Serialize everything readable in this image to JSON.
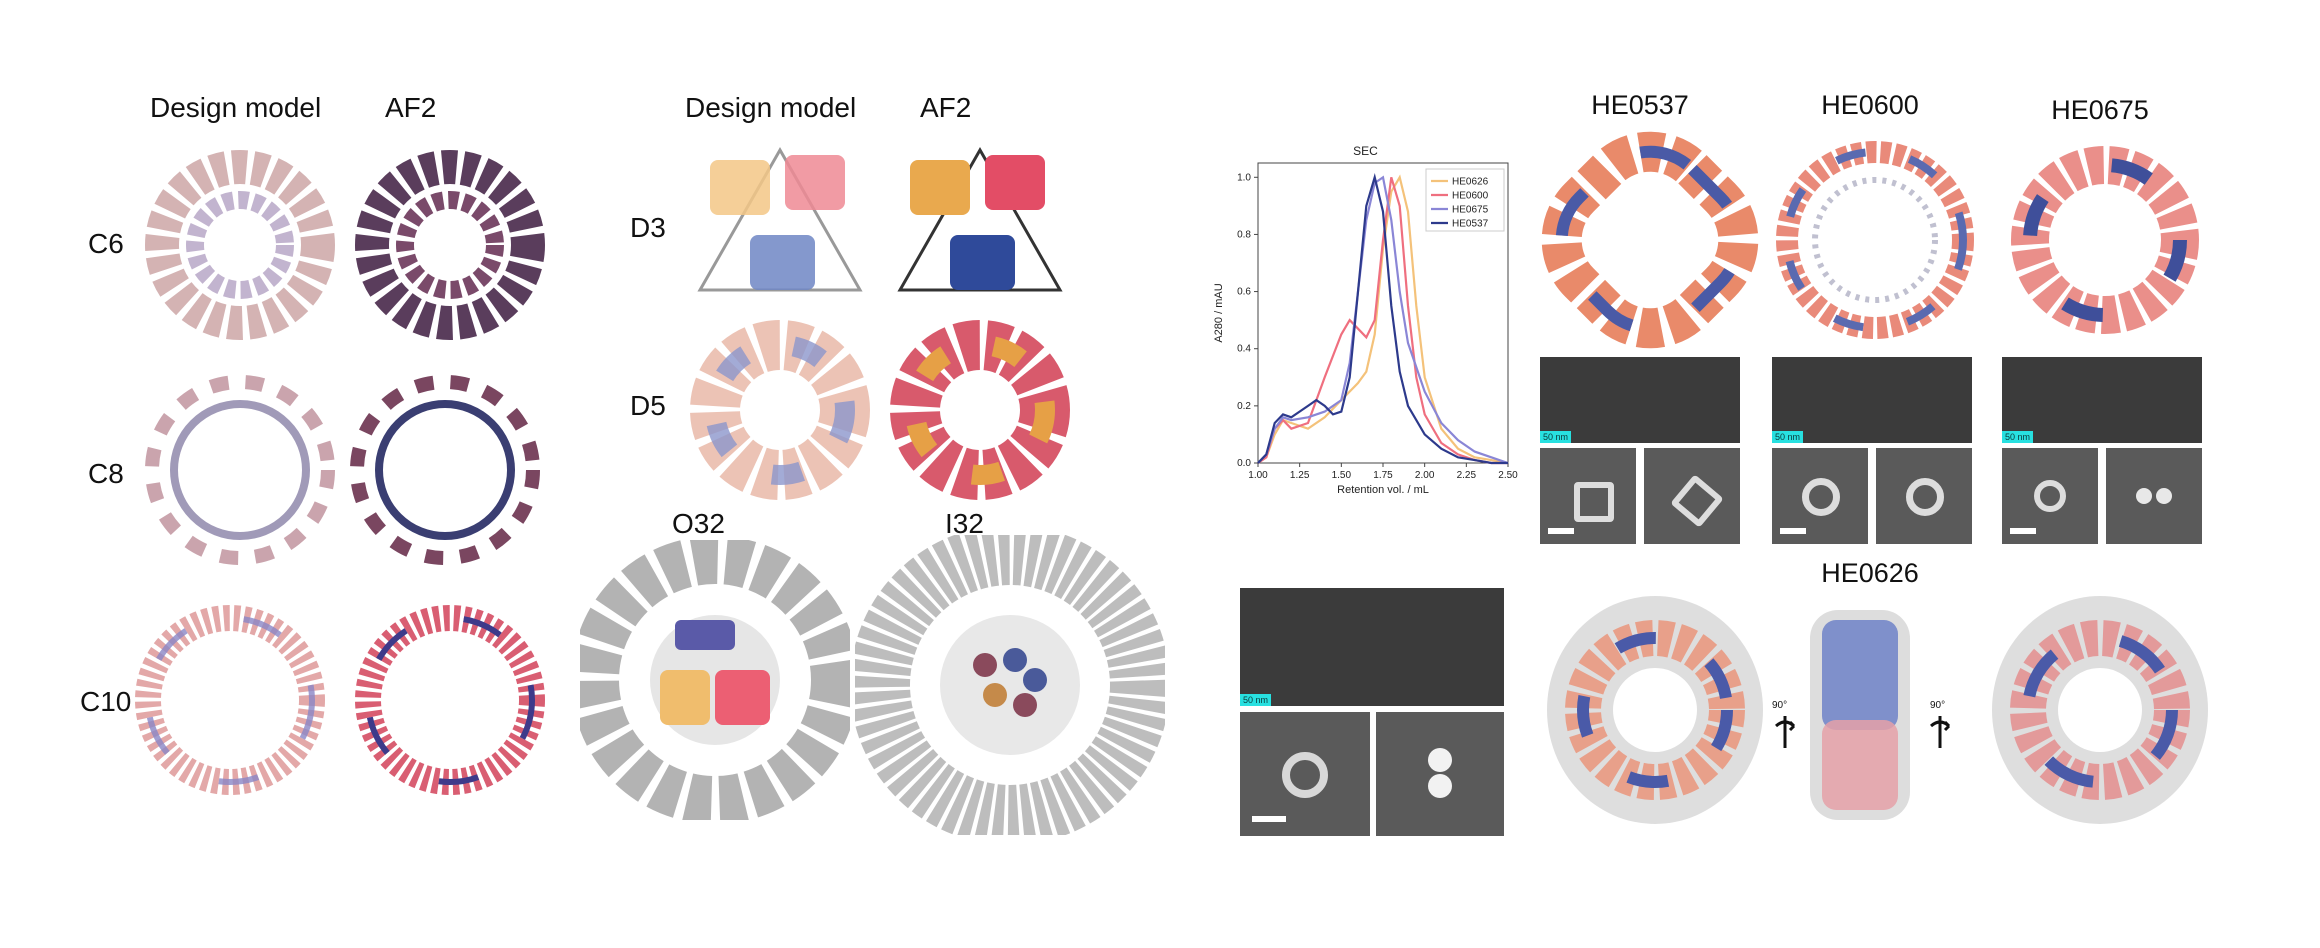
{
  "panel_a": {
    "col_design": "Design model",
    "col_af2": "AF2",
    "rows": [
      {
        "label": "C6"
      },
      {
        "label": "C8"
      },
      {
        "label": "C10"
      }
    ]
  },
  "panel_b": {
    "col_design": "Design model",
    "col_af2": "AF2",
    "rows": [
      {
        "label": "D3"
      },
      {
        "label": "D5"
      }
    ],
    "cages": [
      {
        "label": "O32"
      },
      {
        "label": "I32"
      }
    ]
  },
  "sec_chart": {
    "chart_data": {
      "type": "line",
      "title": "SEC",
      "xlabel": "Retention vol. / mL",
      "ylabel": "A280 / mAU",
      "xlim": [
        1.0,
        2.5
      ],
      "ylim": [
        0.0,
        1.05
      ],
      "xticks": [
        "1.00",
        "1.25",
        "1.50",
        "1.75",
        "2.00",
        "2.25",
        "2.50"
      ],
      "yticks": [
        "0.0",
        "0.2",
        "0.4",
        "0.6",
        "0.8",
        "1.0"
      ],
      "legend_position": "top-right",
      "series": [
        {
          "name": "HE0626",
          "color": "#f4c27a",
          "x": [
            1.0,
            1.05,
            1.1,
            1.15,
            1.2,
            1.3,
            1.4,
            1.5,
            1.6,
            1.65,
            1.7,
            1.75,
            1.8,
            1.85,
            1.9,
            1.95,
            2.0,
            2.1,
            2.2,
            2.3,
            2.4,
            2.5
          ],
          "y": [
            0.0,
            0.02,
            0.1,
            0.15,
            0.14,
            0.12,
            0.16,
            0.22,
            0.28,
            0.32,
            0.45,
            0.75,
            0.95,
            1.0,
            0.88,
            0.55,
            0.3,
            0.12,
            0.05,
            0.02,
            0.01,
            0.0
          ]
        },
        {
          "name": "HE0600",
          "color": "#ef6f7f",
          "x": [
            1.0,
            1.05,
            1.1,
            1.15,
            1.2,
            1.3,
            1.4,
            1.5,
            1.55,
            1.6,
            1.65,
            1.7,
            1.75,
            1.8,
            1.85,
            1.9,
            1.95,
            2.0,
            2.1,
            2.2,
            2.3,
            2.4,
            2.5
          ],
          "y": [
            0.0,
            0.02,
            0.12,
            0.15,
            0.12,
            0.14,
            0.3,
            0.45,
            0.5,
            0.47,
            0.44,
            0.5,
            0.78,
            1.0,
            0.9,
            0.55,
            0.3,
            0.17,
            0.07,
            0.03,
            0.01,
            0.0,
            0.0
          ]
        },
        {
          "name": "HE0675",
          "color": "#8a86d6",
          "x": [
            1.0,
            1.05,
            1.1,
            1.15,
            1.2,
            1.3,
            1.4,
            1.5,
            1.55,
            1.6,
            1.65,
            1.7,
            1.75,
            1.8,
            1.85,
            1.9,
            2.0,
            2.1,
            2.2,
            2.3,
            2.4,
            2.5
          ],
          "y": [
            0.0,
            0.03,
            0.12,
            0.16,
            0.15,
            0.16,
            0.18,
            0.22,
            0.35,
            0.6,
            0.85,
            0.98,
            1.0,
            0.85,
            0.6,
            0.42,
            0.25,
            0.14,
            0.08,
            0.04,
            0.02,
            0.0
          ]
        },
        {
          "name": "HE0537",
          "color": "#2d3a8c",
          "x": [
            1.0,
            1.05,
            1.1,
            1.15,
            1.2,
            1.3,
            1.35,
            1.4,
            1.45,
            1.5,
            1.55,
            1.6,
            1.65,
            1.7,
            1.75,
            1.8,
            1.85,
            1.9,
            2.0,
            2.1,
            2.2,
            2.3,
            2.4,
            2.5
          ],
          "y": [
            0.0,
            0.03,
            0.14,
            0.17,
            0.16,
            0.2,
            0.22,
            0.2,
            0.17,
            0.18,
            0.3,
            0.6,
            0.9,
            1.0,
            0.88,
            0.55,
            0.32,
            0.2,
            0.1,
            0.05,
            0.02,
            0.01,
            0.0,
            0.0
          ]
        }
      ]
    }
  },
  "panel_c": {
    "proteins": [
      {
        "name": "HE0537"
      },
      {
        "name": "HE0600"
      },
      {
        "name": "HE0675"
      }
    ],
    "scale_label": "50 nm",
    "cryo_title": "HE0626",
    "rot_label_left": "90°",
    "rot_label_right": "90°"
  },
  "colors": {
    "yellow": "#f4c27a",
    "salmon": "#ef6f7f",
    "blue": "#3a4ea0",
    "purple": "#8a86d6",
    "gray": "#bdbdbd"
  }
}
